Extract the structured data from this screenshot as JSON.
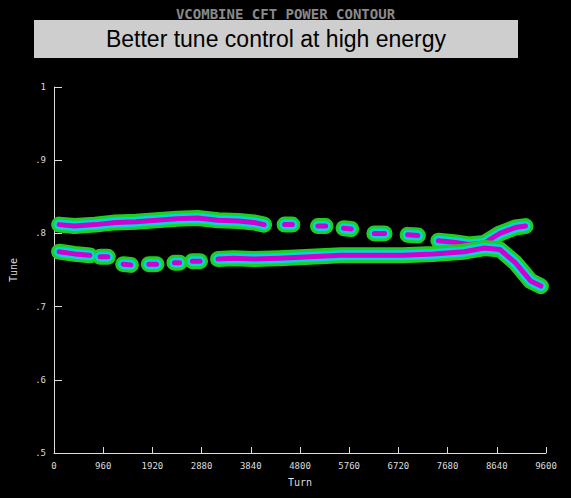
{
  "chart_data": {
    "type": "line",
    "title": "VCOMBINE CFT POWER CONTOUR",
    "annotations": [
      "Better tune control at high energy"
    ],
    "xlabel": "Turn",
    "ylabel": "Tune",
    "xlim": [
      0,
      9600
    ],
    "xticks": [
      0,
      960,
      1920,
      2880,
      3840,
      4800,
      5760,
      6720,
      7680,
      8640,
      9600
    ],
    "ylim": [
      0.5,
      1
    ],
    "yticks": [
      {
        "value": 0.5,
        "label": ".5"
      },
      {
        "value": 0.6,
        "label": ".6"
      },
      {
        "value": 0.7,
        "label": ".7"
      },
      {
        "value": 0.8,
        "label": ".8"
      },
      {
        "value": 0.9,
        "label": ".9"
      },
      1
    ],
    "grid": false,
    "series": [
      {
        "color": "#d000d0",
        "x": [
          100,
          400,
          800,
          1200,
          1600,
          2000,
          2400,
          2800,
          3200,
          3600,
          3900,
          4100,
          4300,
          4500,
          4650,
          4850,
          5150,
          5300,
          5480,
          5650,
          5800,
          6000,
          6250,
          6450,
          6650,
          6900,
          7100,
          7300,
          7500,
          7800,
          8100,
          8400,
          8700,
          9000,
          9200
        ],
        "values": [
          0.812,
          0.81,
          0.812,
          0.815,
          0.816,
          0.818,
          0.82,
          0.821,
          0.818,
          0.817,
          0.815,
          0.812,
          null,
          0.812,
          0.812,
          null,
          0.81,
          0.81,
          null,
          0.807,
          0.806,
          null,
          0.8,
          0.8,
          null,
          0.798,
          0.797,
          null,
          0.79,
          0.788,
          0.785,
          0.787,
          0.8,
          0.808,
          0.81
        ]
      },
      {
        "color": "#d000d0",
        "x": [
          100,
          400,
          700,
          800,
          900,
          1050,
          1200,
          1350,
          1500,
          1680,
          1850,
          2000,
          2180,
          2350,
          2450,
          2580,
          2700,
          2850,
          3020,
          3200,
          3500,
          3900,
          4400,
          5000,
          5600,
          6200,
          6800,
          7400,
          8000,
          8400,
          8700,
          9000,
          9300,
          9500
        ],
        "values": [
          0.775,
          0.772,
          0.77,
          null,
          0.768,
          0.768,
          null,
          0.758,
          0.757,
          null,
          0.758,
          0.758,
          null,
          0.76,
          0.76,
          null,
          0.762,
          0.762,
          null,
          0.765,
          0.766,
          0.765,
          0.766,
          0.768,
          0.77,
          0.77,
          0.77,
          0.772,
          0.775,
          0.78,
          0.778,
          0.76,
          0.735,
          0.728
        ]
      }
    ]
  }
}
